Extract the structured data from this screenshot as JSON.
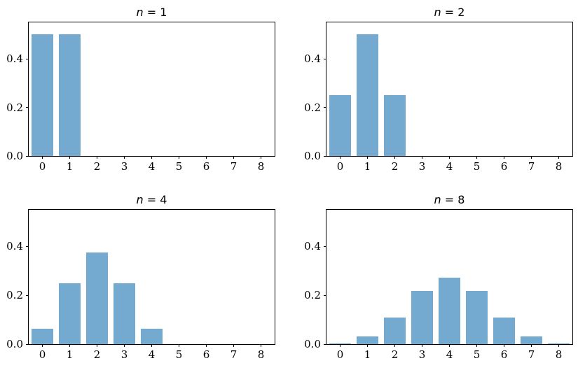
{
  "figure": {
    "background": "#ffffff",
    "text_color": "#000000",
    "bar_color": "#74aacf",
    "grid": false,
    "legend": null
  },
  "chart_data": [
    {
      "type": "bar",
      "title": "n = 1",
      "title_var": "n",
      "title_rest": " = 1",
      "x": [
        0,
        1
      ],
      "values": [
        0.5,
        0.5
      ],
      "xlabel": "",
      "ylabel": "",
      "xlim": [
        -0.5,
        8.5
      ],
      "ylim": [
        0,
        0.55
      ],
      "bar_width": 0.8,
      "bar_color": "#74aacf",
      "xticks": [
        0,
        1,
        2,
        3,
        4,
        5,
        6,
        7,
        8
      ],
      "xticklabels": [
        "0",
        "1",
        "2",
        "3",
        "4",
        "5",
        "6",
        "7",
        "8"
      ],
      "yticks": [
        0.0,
        0.2,
        0.4
      ],
      "yticklabels": [
        "0.0",
        "0.2",
        "0.4"
      ],
      "grid": false,
      "legend": null
    },
    {
      "type": "bar",
      "title": "n = 2",
      "title_var": "n",
      "title_rest": " = 2",
      "x": [
        0,
        1,
        2
      ],
      "values": [
        0.25,
        0.5,
        0.25
      ],
      "xlabel": "",
      "ylabel": "",
      "xlim": [
        -0.5,
        8.5
      ],
      "ylim": [
        0,
        0.55
      ],
      "bar_width": 0.8,
      "bar_color": "#74aacf",
      "xticks": [
        0,
        1,
        2,
        3,
        4,
        5,
        6,
        7,
        8
      ],
      "xticklabels": [
        "0",
        "1",
        "2",
        "3",
        "4",
        "5",
        "6",
        "7",
        "8"
      ],
      "yticks": [
        0.0,
        0.2,
        0.4
      ],
      "yticklabels": [
        "0.0",
        "0.2",
        "0.4"
      ],
      "grid": false,
      "legend": null
    },
    {
      "type": "bar",
      "title": "n = 4",
      "title_var": "n",
      "title_rest": " = 4",
      "x": [
        0,
        1,
        2,
        3,
        4
      ],
      "values": [
        0.0625,
        0.25,
        0.375,
        0.25,
        0.0625
      ],
      "xlabel": "",
      "ylabel": "",
      "xlim": [
        -0.5,
        8.5
      ],
      "ylim": [
        0,
        0.55
      ],
      "bar_width": 0.8,
      "bar_color": "#74aacf",
      "xticks": [
        0,
        1,
        2,
        3,
        4,
        5,
        6,
        7,
        8
      ],
      "xticklabels": [
        "0",
        "1",
        "2",
        "3",
        "4",
        "5",
        "6",
        "7",
        "8"
      ],
      "yticks": [
        0.0,
        0.2,
        0.4
      ],
      "yticklabels": [
        "0.0",
        "0.2",
        "0.4"
      ],
      "grid": false,
      "legend": null
    },
    {
      "type": "bar",
      "title": "n = 8",
      "title_var": "n",
      "title_rest": " = 8",
      "x": [
        0,
        1,
        2,
        3,
        4,
        5,
        6,
        7,
        8
      ],
      "values": [
        0.00390625,
        0.03125,
        0.109375,
        0.21875,
        0.2734375,
        0.21875,
        0.109375,
        0.03125,
        0.00390625
      ],
      "xlabel": "",
      "ylabel": "",
      "xlim": [
        -0.5,
        8.5
      ],
      "ylim": [
        0,
        0.55
      ],
      "bar_width": 0.8,
      "bar_color": "#74aacf",
      "xticks": [
        0,
        1,
        2,
        3,
        4,
        5,
        6,
        7,
        8
      ],
      "xticklabels": [
        "0",
        "1",
        "2",
        "3",
        "4",
        "5",
        "6",
        "7",
        "8"
      ],
      "yticks": [
        0.0,
        0.2,
        0.4
      ],
      "yticklabels": [
        "0.0",
        "0.2",
        "0.4"
      ],
      "grid": false,
      "legend": null
    }
  ]
}
